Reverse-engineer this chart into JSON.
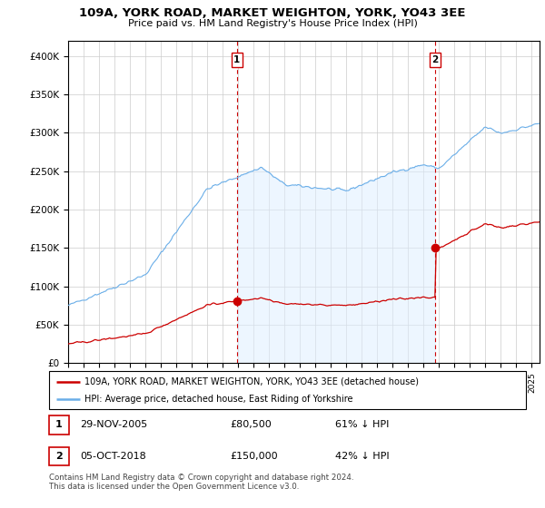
{
  "title": "109A, YORK ROAD, MARKET WEIGHTON, YORK, YO43 3EE",
  "subtitle": "Price paid vs. HM Land Registry's House Price Index (HPI)",
  "ylim": [
    0,
    420000
  ],
  "yticks": [
    0,
    50000,
    100000,
    150000,
    200000,
    250000,
    300000,
    350000,
    400000
  ],
  "ytick_labels": [
    "£0",
    "£50K",
    "£100K",
    "£150K",
    "£200K",
    "£250K",
    "£300K",
    "£350K",
    "£400K"
  ],
  "sale1_date": 2005.917,
  "sale1_price": 80500,
  "sale1_label": "1",
  "sale2_date": 2018.75,
  "sale2_price": 150000,
  "sale2_label": "2",
  "hpi_color": "#6aaee8",
  "hpi_fill_color": "#ddeeff",
  "price_color": "#cc0000",
  "annotation_box_color": "#cc0000",
  "grid_color": "#cccccc",
  "legend1_text": "109A, YORK ROAD, MARKET WEIGHTON, YORK, YO43 3EE (detached house)",
  "legend2_text": "HPI: Average price, detached house, East Riding of Yorkshire",
  "table_row1": [
    "1",
    "29-NOV-2005",
    "£80,500",
    "61% ↓ HPI"
  ],
  "table_row2": [
    "2",
    "05-OCT-2018",
    "£150,000",
    "42% ↓ HPI"
  ],
  "footnote": "Contains HM Land Registry data © Crown copyright and database right 2024.\nThis data is licensed under the Open Government Licence v3.0.",
  "xmin": 1995,
  "xmax": 2025.5
}
